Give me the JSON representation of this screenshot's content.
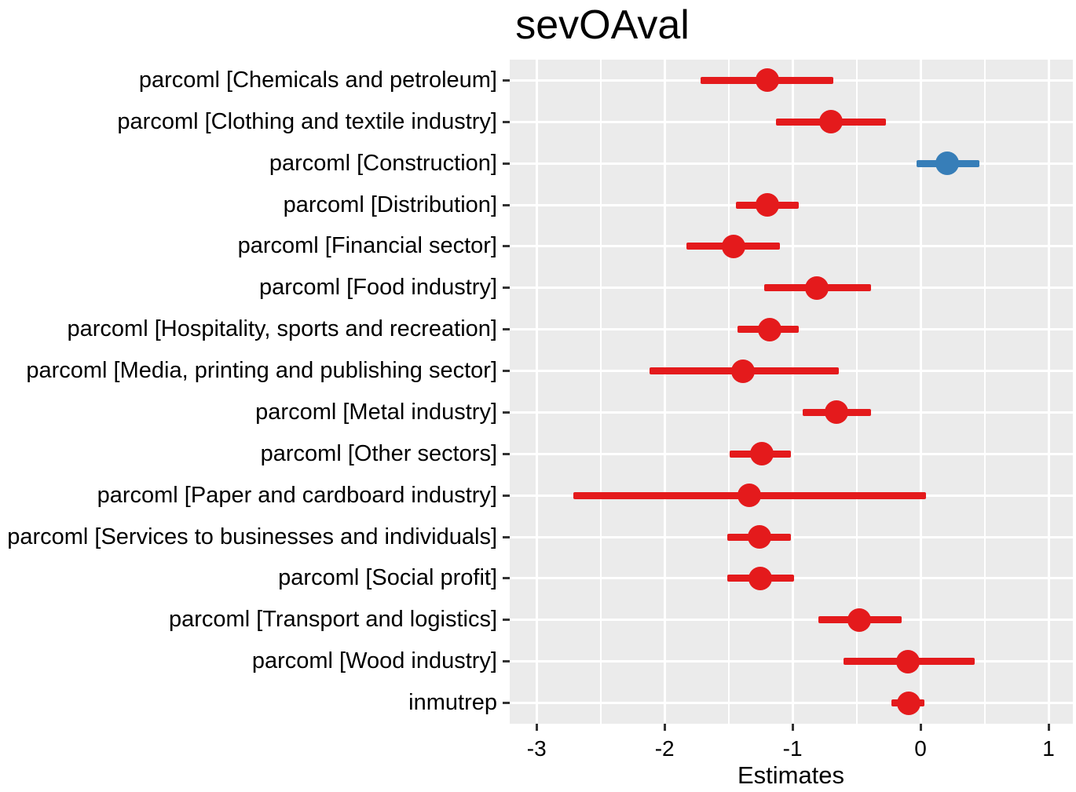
{
  "figure": {
    "title": "sevOAval",
    "xlabel": "Estimates"
  },
  "chart_data": {
    "type": "scatter",
    "subtype": "coefficient-dot-whisker-forest",
    "title": "sevOAval",
    "xlabel": "Estimates",
    "ylabel": "",
    "xlim": [
      -3.21,
      1.19
    ],
    "x_major_ticks": [
      -3,
      -2,
      -1,
      0,
      1
    ],
    "x_major_tick_labels": [
      "-3",
      "-2",
      "-1",
      "0",
      "1"
    ],
    "x_minor_ticks": [
      -2.5,
      -1.5,
      -0.5,
      0.5
    ],
    "grid": true,
    "legend": false,
    "panel_bg_color": "#EBEBEB",
    "grid_color": "#FFFFFF",
    "palette": {
      "negative": "#E41A1C",
      "positive": "#377EB8"
    },
    "rows": [
      {
        "label": "parcoml [Chemicals and petroleum]",
        "estimate": -1.2,
        "ci_low": -1.72,
        "ci_high": -0.68,
        "color": "#E41A1C"
      },
      {
        "label": "parcoml [Clothing and textile industry]",
        "estimate": -0.7,
        "ci_low": -1.13,
        "ci_high": -0.27,
        "color": "#E41A1C"
      },
      {
        "label": "parcoml [Construction]",
        "estimate": 0.21,
        "ci_low": -0.03,
        "ci_high": 0.46,
        "color": "#377EB8"
      },
      {
        "label": "parcoml [Distribution]",
        "estimate": -1.2,
        "ci_low": -1.44,
        "ci_high": -0.95,
        "color": "#E41A1C"
      },
      {
        "label": "parcoml [Financial sector]",
        "estimate": -1.46,
        "ci_low": -1.83,
        "ci_high": -1.1,
        "color": "#E41A1C"
      },
      {
        "label": "parcoml [Food industry]",
        "estimate": -0.81,
        "ci_low": -1.22,
        "ci_high": -0.39,
        "color": "#E41A1C"
      },
      {
        "label": "parcoml [Hospitality, sports and recreation]",
        "estimate": -1.18,
        "ci_low": -1.43,
        "ci_high": -0.95,
        "color": "#E41A1C"
      },
      {
        "label": "parcoml [Media, printing and publishing sector]",
        "estimate": -1.39,
        "ci_low": -2.12,
        "ci_high": -0.64,
        "color": "#E41A1C"
      },
      {
        "label": "parcoml [Metal industry]",
        "estimate": -0.66,
        "ci_low": -0.92,
        "ci_high": -0.39,
        "color": "#E41A1C"
      },
      {
        "label": "parcoml [Other sectors]",
        "estimate": -1.24,
        "ci_low": -1.49,
        "ci_high": -1.01,
        "color": "#E41A1C"
      },
      {
        "label": "parcoml [Paper and cardboard industry]",
        "estimate": -1.34,
        "ci_low": -2.71,
        "ci_high": 0.04,
        "color": "#E41A1C"
      },
      {
        "label": "parcoml [Services to businesses and individuals]",
        "estimate": -1.26,
        "ci_low": -1.51,
        "ci_high": -1.01,
        "color": "#E41A1C"
      },
      {
        "label": "parcoml [Social profit]",
        "estimate": -1.25,
        "ci_low": -1.51,
        "ci_high": -0.99,
        "color": "#E41A1C"
      },
      {
        "label": "parcoml [Transport and logistics]",
        "estimate": -0.48,
        "ci_low": -0.8,
        "ci_high": -0.15,
        "color": "#E41A1C"
      },
      {
        "label": "parcoml [Wood industry]",
        "estimate": -0.1,
        "ci_low": -0.6,
        "ci_high": 0.42,
        "color": "#E41A1C"
      },
      {
        "label": "inmutrep",
        "estimate": -0.09,
        "ci_low": -0.23,
        "ci_high": 0.03,
        "color": "#E41A1C"
      }
    ]
  }
}
